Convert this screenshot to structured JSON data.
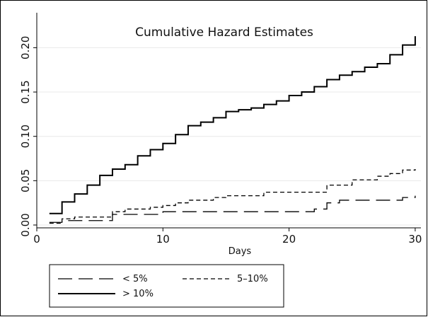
{
  "chart_data": {
    "type": "line",
    "title": "Cumulative Hazard Estimates",
    "xlabel": "Days",
    "ylabel": "",
    "xlim": [
      0,
      30
    ],
    "ylim": [
      0,
      0.21
    ],
    "x_ticks": [
      0,
      10,
      20,
      30
    ],
    "x_tick_labels": [
      "0",
      "10",
      "20",
      "30"
    ],
    "y_ticks": [
      0,
      0.05,
      0.1,
      0.15,
      0.2
    ],
    "y_tick_labels": [
      "0.00",
      "0.05",
      "0.10",
      "0.15",
      "0.20"
    ],
    "grid": true,
    "legend_position": "bottom",
    "series": [
      {
        "name": "< 5%",
        "style": "long-dash",
        "x": [
          1,
          2,
          6,
          10,
          22,
          23,
          24,
          29,
          30
        ],
        "y": [
          0.003,
          0.005,
          0.012,
          0.015,
          0.018,
          0.025,
          0.028,
          0.031,
          0.033
        ]
      },
      {
        "name": "5–10%",
        "style": "short-dash",
        "x": [
          1,
          2,
          3,
          6,
          7,
          9,
          10,
          11,
          12,
          14,
          15,
          18,
          23,
          25,
          27,
          28,
          29,
          30
        ],
        "y": [
          0.002,
          0.007,
          0.009,
          0.015,
          0.018,
          0.02,
          0.022,
          0.025,
          0.028,
          0.031,
          0.033,
          0.037,
          0.045,
          0.051,
          0.055,
          0.058,
          0.062,
          0.063
        ]
      },
      {
        "name": "> 10%",
        "style": "solid",
        "x": [
          1,
          2,
          3,
          4,
          5,
          6,
          7,
          8,
          9,
          10,
          11,
          12,
          13,
          14,
          15,
          16,
          17,
          18,
          19,
          20,
          21,
          22,
          23,
          24,
          25,
          26,
          27,
          28,
          29,
          30
        ],
        "y": [
          0.013,
          0.026,
          0.035,
          0.045,
          0.056,
          0.063,
          0.068,
          0.078,
          0.085,
          0.092,
          0.102,
          0.112,
          0.116,
          0.121,
          0.128,
          0.13,
          0.132,
          0.136,
          0.14,
          0.146,
          0.15,
          0.156,
          0.164,
          0.169,
          0.173,
          0.178,
          0.182,
          0.192,
          0.203,
          0.213
        ]
      }
    ]
  }
}
